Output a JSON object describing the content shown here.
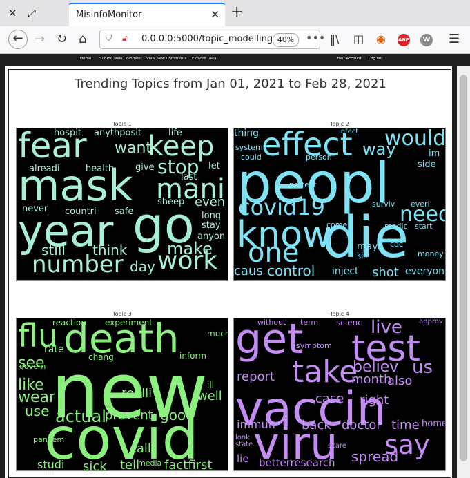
{
  "browser": {
    "tab_title": "MisinfoMonitor",
    "url": "0.0.0.0:5000/topic_modelling",
    "zoom": "40%",
    "abp_label": "ABP",
    "ext_label": "W"
  },
  "site_nav": {
    "home": "Home",
    "submit": "Submit New Comment",
    "view": "View New Comments",
    "explore": "Explore Data",
    "account": "Your Account",
    "logout": "Log out"
  },
  "page": {
    "title": "Trending Topics from Jan 01, 2021 to Feb 28, 2021"
  },
  "topics": [
    {
      "label": "Topic 1",
      "color": "#a8f0d4",
      "words": [
        "fear",
        "keep",
        "mask",
        "mani",
        "year",
        "go",
        "number",
        "work",
        "still",
        "think",
        "make",
        "day",
        "want",
        "stop",
        "even",
        "hospit",
        "anythposit",
        "life",
        "alreadi",
        "health",
        "give",
        "let",
        "last",
        "sheep",
        "never",
        "countri",
        "safe",
        "long",
        "stay",
        "anyon"
      ]
    },
    {
      "label": "Topic 2",
      "color": "#7fe3f5",
      "words": [
        "peopl",
        "effect",
        "would",
        "know",
        "die",
        "one",
        "need",
        "covid19",
        "way",
        "control",
        "shot",
        "caus",
        "inject",
        "everyon",
        "thing",
        "infect",
        "system",
        "could",
        "person",
        "im",
        "side",
        "protect",
        "surviv",
        "everi",
        "come",
        "medic",
        "start",
        "may",
        "cdc",
        "kill",
        "money"
      ]
    },
    {
      "label": "Topic 3",
      "color": "#8cf07e",
      "words": [
        "death",
        "flu",
        "new",
        "covid",
        "see",
        "like",
        "wear",
        "use",
        "actual",
        "prevent",
        "good",
        "realli",
        "call",
        "well",
        "sick",
        "tell",
        "media",
        "factfirst",
        "studi",
        "pandem",
        "reaction",
        "experiment",
        "rate",
        "much",
        "chang",
        "inform",
        "govern",
        "ill"
      ]
    },
    {
      "label": "Topic 4",
      "color": "#c48cf5",
      "words": [
        "get",
        "test",
        "vaccin",
        "viru",
        "take",
        "say",
        "live",
        "us",
        "believ",
        "report",
        "month",
        "also",
        "case",
        "right",
        "immun",
        "back",
        "doctor",
        "time",
        "home",
        "spread",
        "betterresearch",
        "lie",
        "without",
        "term",
        "scienc",
        "approv",
        "symptom",
        "look",
        "state",
        "scare"
      ]
    }
  ]
}
